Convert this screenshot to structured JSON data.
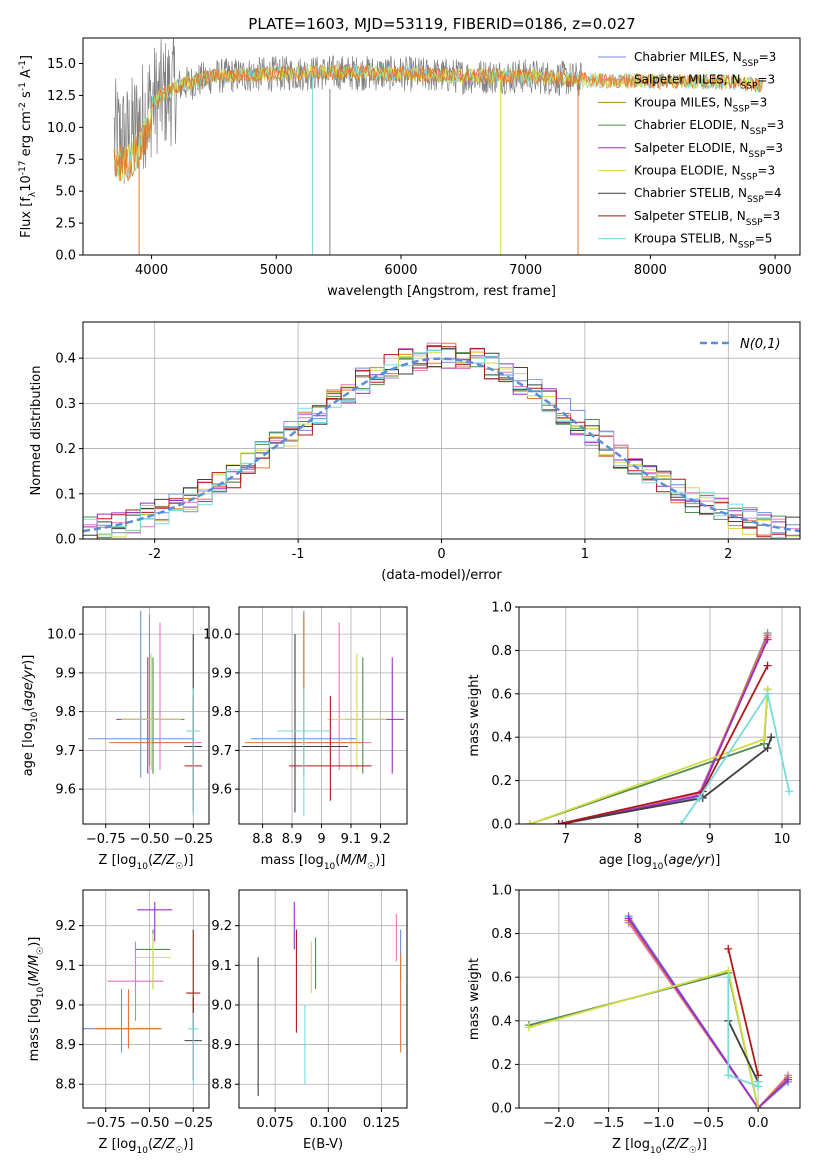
{
  "figure_title": "PLATE=1603, MJD=53119, FIBERID=0186, z=0.027",
  "legend": [
    {
      "name": "Chabrier MILES, N",
      "sub": "SSP",
      "tail": "=3",
      "color": "#6f8fd8"
    },
    {
      "name": "Salpeter MILES, N",
      "sub": "SSP",
      "tail": "=3",
      "color": "#e377c2"
    },
    {
      "name": "Kroupa MILES, N",
      "sub": "SSP",
      "tail": "=3",
      "color": "#b0891e"
    },
    {
      "name": "Chabrier ELODIE, N",
      "sub": "SSP",
      "tail": "=3",
      "color": "#4f8c4f"
    },
    {
      "name": "Salpeter ELODIE, N",
      "sub": "SSP",
      "tail": "=3",
      "color": "#9b30c8"
    },
    {
      "name": "Kroupa ELODIE, N",
      "sub": "SSP",
      "tail": "=3",
      "color": "#d4dc48"
    },
    {
      "name": "Chabrier STELIB, N",
      "sub": "SSP",
      "tail": "=4",
      "color": "#404040"
    },
    {
      "name": "Salpeter STELIB, N",
      "sub": "SSP",
      "tail": "=3",
      "color": "#b01818"
    },
    {
      "name": "Kroupa STELIB, N",
      "sub": "SSP",
      "tail": "=5",
      "color": "#78dcdc"
    }
  ],
  "chart_data": [
    {
      "id": "spectrum",
      "type": "line",
      "xlabel": "wavelength [Angstrom, rest frame]",
      "ylabel_parts": [
        "Flux [f",
        "λ",
        "10",
        "-17",
        " erg cm",
        "-2",
        " s",
        "-1",
        " A",
        "-1",
        "]"
      ],
      "xlim": [
        3450,
        9200
      ],
      "ylim": [
        0,
        17.0
      ],
      "xticks": [
        4000,
        5000,
        6000,
        7000,
        8000,
        9000
      ],
      "yticks": [
        0.0,
        2.5,
        5.0,
        7.5,
        10.0,
        12.5,
        15.0
      ],
      "continuum": [
        [
          3680,
          9.5
        ],
        [
          3800,
          9.0
        ],
        [
          3900,
          10.5
        ],
        [
          4000,
          12.0
        ],
        [
          4200,
          13.2
        ],
        [
          4500,
          14.0
        ],
        [
          5000,
          14.2
        ],
        [
          5500,
          14.3
        ],
        [
          6000,
          14.2
        ],
        [
          6500,
          14.0
        ],
        [
          7000,
          14.0
        ],
        [
          7500,
          13.7
        ],
        [
          8000,
          13.6
        ],
        [
          8500,
          13.6
        ],
        [
          8900,
          13.3
        ]
      ],
      "observed_range": [
        3700,
        7450
      ],
      "model_ranges": [
        [
          3700,
          3900,
          8900
        ],
        [
          3700,
          5290,
          8900
        ],
        [
          3700,
          6800,
          8900
        ],
        [
          3700,
          7420,
          8900
        ]
      ]
    },
    {
      "id": "residuals",
      "type": "step-histogram",
      "xlabel": "(data-model)/error",
      "ylabel": "Normed distribution",
      "xlim": [
        -2.5,
        2.5
      ],
      "ylim": [
        0,
        0.48
      ],
      "xticks": [
        -2,
        -1,
        0,
        1,
        2
      ],
      "yticks": [
        0.0,
        0.1,
        0.2,
        0.3,
        0.4
      ],
      "bin_width": 0.1,
      "reference_label": "N(0,1)",
      "reference_color": "#5b8ed8"
    },
    {
      "id": "age-vs-Z",
      "type": "errorbar",
      "xlabel": "Z [log10(Z/Z☉)]",
      "ylabel": "age [log10(age/yr)]",
      "xlim": [
        -0.88,
        -0.16
      ],
      "ylim": [
        9.51,
        10.07
      ],
      "xticks": [
        -0.75,
        -0.5,
        -0.25
      ],
      "xtick_labels": [
        "−0.75",
        "−0.50",
        "−0.25"
      ],
      "yticks": [
        9.6,
        9.7,
        9.8,
        9.9,
        10.0
      ],
      "points": [
        {
          "x": -0.55,
          "y": 9.73,
          "xerr": 0.3,
          "yerr": [
            0.1,
            0.33
          ],
          "color": "#6f8fd8"
        },
        {
          "x": -0.44,
          "y": 9.72,
          "xerr": 0.24,
          "yerr": [
            0.07,
            0.31
          ],
          "color": "#e377c2"
        },
        {
          "x": -0.5,
          "y": 9.72,
          "xerr": 0.23,
          "yerr": [
            0.06,
            0.33
          ],
          "color": "#e07a30"
        },
        {
          "x": -0.48,
          "y": 9.78,
          "xerr": 0.18,
          "yerr": [
            0.14,
            0.16
          ],
          "color": "#4f8c4f"
        },
        {
          "x": -0.51,
          "y": 9.78,
          "xerr": 0.18,
          "yerr": [
            0.14,
            0.16
          ],
          "color": "#9b30c8"
        },
        {
          "x": -0.49,
          "y": 9.78,
          "xerr": 0.17,
          "yerr": [
            0.13,
            0.17
          ],
          "color": "#d4dc48"
        },
        {
          "x": -0.25,
          "y": 9.71,
          "xerr": 0.05,
          "yerr": [
            0.17,
            0.29
          ],
          "color": "#404040"
        },
        {
          "x": -0.25,
          "y": 9.66,
          "xerr": 0.05,
          "yerr": [
            0.09,
            0.18
          ],
          "color": "#b01818"
        },
        {
          "x": -0.25,
          "y": 9.75,
          "xerr": 0.04,
          "yerr": [
            0.22,
            0.11
          ],
          "color": "#78dcdc"
        }
      ]
    },
    {
      "id": "age-vs-mass",
      "type": "errorbar",
      "xlabel": "mass [log10(M/M☉)]",
      "ylabel": "",
      "xlim": [
        8.72,
        9.29
      ],
      "ylim": [
        9.51,
        10.07
      ],
      "xticks": [
        8.8,
        8.9,
        9.0,
        9.1,
        9.2
      ],
      "yticks": [
        9.6,
        9.7,
        9.8,
        9.9,
        10.0
      ],
      "points": [
        {
          "x": 8.94,
          "y": 9.73,
          "xerr": 0.18,
          "yerr": [
            0.1,
            0.33
          ],
          "color": "#6f8fd8"
        },
        {
          "x": 9.06,
          "y": 9.72,
          "xerr": 0.11,
          "yerr": [
            0.07,
            0.31
          ],
          "color": "#e377c2"
        },
        {
          "x": 8.94,
          "y": 9.72,
          "xerr": 0.2,
          "yerr": [
            0.06,
            0.33
          ],
          "color": "#e07a30"
        },
        {
          "x": 9.14,
          "y": 9.78,
          "xerr": 0.06,
          "yerr": [
            0.14,
            0.16
          ],
          "color": "#4f8c4f"
        },
        {
          "x": 9.24,
          "y": 9.78,
          "xerr": 0.04,
          "yerr": [
            0.14,
            0.16
          ],
          "color": "#9b30c8"
        },
        {
          "x": 9.12,
          "y": 9.78,
          "xerr": 0.1,
          "yerr": [
            0.13,
            0.17
          ],
          "color": "#d4dc48"
        },
        {
          "x": 8.91,
          "y": 9.71,
          "xerr": 0.18,
          "yerr": [
            0.17,
            0.29
          ],
          "color": "#404040"
        },
        {
          "x": 9.03,
          "y": 9.66,
          "xerr": 0.14,
          "yerr": [
            0.09,
            0.18
          ],
          "color": "#b01818"
        },
        {
          "x": 8.94,
          "y": 9.75,
          "xerr": 0.09,
          "yerr": [
            0.22,
            0.11
          ],
          "color": "#78dcdc"
        }
      ]
    },
    {
      "id": "weight-vs-age",
      "type": "line",
      "xlabel": "age [log10(age/yr)]",
      "ylabel": "mass weight",
      "xlim": [
        6.35,
        10.25
      ],
      "ylim": [
        0,
        1.0
      ],
      "xticks": [
        7,
        8,
        9,
        10
      ],
      "yticks": [
        0.0,
        0.2,
        0.4,
        0.6,
        0.8,
        1.0
      ],
      "series": [
        {
          "color": "#6f8fd8",
          "x": [
            6.95,
            8.85,
            9.8
          ],
          "y": [
            0.0,
            0.12,
            0.88
          ]
        },
        {
          "color": "#e377c2",
          "x": [
            6.95,
            8.85,
            9.8
          ],
          "y": [
            0.0,
            0.14,
            0.86
          ]
        },
        {
          "color": "#e07a30",
          "x": [
            6.95,
            8.85,
            9.8
          ],
          "y": [
            0.0,
            0.13,
            0.87
          ]
        },
        {
          "color": "#4f8c4f",
          "x": [
            6.5,
            9.75,
            9.8
          ],
          "y": [
            0.0,
            0.37,
            0.62
          ]
        },
        {
          "color": "#9b30c8",
          "x": [
            6.95,
            8.85,
            9.8
          ],
          "y": [
            0.0,
            0.13,
            0.85
          ]
        },
        {
          "color": "#d4dc48",
          "x": [
            6.5,
            9.75,
            9.8
          ],
          "y": [
            0.0,
            0.39,
            0.62
          ]
        },
        {
          "color": "#404040",
          "x": [
            6.9,
            8.9,
            9.8,
            9.85
          ],
          "y": [
            0.0,
            0.12,
            0.35,
            0.4
          ]
        },
        {
          "color": "#b01818",
          "x": [
            6.9,
            8.9,
            9.8
          ],
          "y": [
            0.0,
            0.15,
            0.73
          ]
        },
        {
          "color": "#78dcdc",
          "x": [
            8.6,
            8.85,
            9.8,
            10.1
          ],
          "y": [
            0.0,
            0.12,
            0.6,
            0.15
          ]
        }
      ]
    },
    {
      "id": "mass-vs-Z",
      "type": "errorbar",
      "xlabel": "Z [log10(Z/Z☉)]",
      "ylabel": "mass [log10(M/M☉)]",
      "xlim": [
        -0.88,
        -0.16
      ],
      "ylim": [
        8.74,
        9.29
      ],
      "xticks": [
        -0.75,
        -0.5,
        -0.25
      ],
      "xtick_labels": [
        "−0.75",
        "−0.50",
        "−0.25"
      ],
      "yticks": [
        8.8,
        8.9,
        9.0,
        9.1,
        9.2
      ],
      "points": [
        {
          "x": -0.66,
          "y": 8.94,
          "xerr": 0.22,
          "yerr": [
            0.06,
            0.1
          ],
          "color": "#6f8fd8"
        },
        {
          "x": -0.58,
          "y": 9.06,
          "xerr": 0.16,
          "yerr": [
            0.1,
            0.1
          ],
          "color": "#e377c2"
        },
        {
          "x": -0.62,
          "y": 8.94,
          "xerr": 0.19,
          "yerr": [
            0.05,
            0.1
          ],
          "color": "#e07a30"
        },
        {
          "x": -0.48,
          "y": 9.14,
          "xerr": 0.1,
          "yerr": [
            0.1,
            0.05
          ],
          "color": "#4f8c4f"
        },
        {
          "x": -0.47,
          "y": 9.24,
          "xerr": 0.1,
          "yerr": [
            0.08,
            0.02
          ],
          "color": "#9b30c8"
        },
        {
          "x": -0.48,
          "y": 9.12,
          "xerr": 0.1,
          "yerr": [
            0.08,
            0.06
          ],
          "color": "#d4dc48"
        },
        {
          "x": -0.25,
          "y": 8.91,
          "xerr": 0.05,
          "yerr": [
            0.1,
            0.11
          ],
          "color": "#404040"
        },
        {
          "x": -0.25,
          "y": 9.03,
          "xerr": 0.04,
          "yerr": [
            0.09,
            0.16
          ],
          "color": "#b01818"
        },
        {
          "x": -0.25,
          "y": 8.94,
          "xerr": 0.03,
          "yerr": [
            0.14,
            0.04
          ],
          "color": "#78dcdc"
        }
      ]
    },
    {
      "id": "mass-vs-EBV",
      "type": "errorbar",
      "xlabel": "E(B-V)",
      "ylabel": "",
      "xlim": [
        0.058,
        0.137
      ],
      "ylim": [
        8.74,
        9.29
      ],
      "xticks": [
        0.075,
        0.1,
        0.125
      ],
      "xtick_labels": [
        "0.075",
        "0.100",
        "0.125"
      ],
      "yticks": [
        8.8,
        8.9,
        9.0,
        9.1,
        9.2
      ],
      "points": [
        {
          "x": 0.134,
          "y": 9.13,
          "xerr": 0,
          "yerr": [
            0.07,
            0.06
          ],
          "color": "#6f8fd8"
        },
        {
          "x": 0.132,
          "y": 9.15,
          "xerr": 0,
          "yerr": [
            0.04,
            0.08
          ],
          "color": "#e377c2"
        },
        {
          "x": 0.134,
          "y": 9.0,
          "xerr": 0,
          "yerr": [
            0.12,
            0.13
          ],
          "color": "#e07a30"
        },
        {
          "x": 0.094,
          "y": 9.1,
          "xerr": 0,
          "yerr": [
            0.06,
            0.07
          ],
          "color": "#4f8c4f"
        },
        {
          "x": 0.084,
          "y": 9.2,
          "xerr": 0,
          "yerr": [
            0.06,
            0.06
          ],
          "color": "#9b30c8"
        },
        {
          "x": 0.092,
          "y": 9.07,
          "xerr": 0,
          "yerr": [
            0.04,
            0.09
          ],
          "color": "#d4dc48"
        },
        {
          "x": 0.067,
          "y": 8.95,
          "xerr": 0,
          "yerr": [
            0.18,
            0.17
          ],
          "color": "#404040"
        },
        {
          "x": 0.085,
          "y": 9.07,
          "xerr": 0,
          "yerr": [
            0.14,
            0.12
          ],
          "color": "#b01818"
        },
        {
          "x": 0.089,
          "y": 8.93,
          "xerr": 0,
          "yerr": [
            0.13,
            0.07
          ],
          "color": "#78dcdc"
        }
      ]
    },
    {
      "id": "weight-vs-Z",
      "type": "line",
      "xlabel": "Z [log10(Z/Z☉)]",
      "ylabel": "mass weight",
      "xlim": [
        -2.4,
        0.42
      ],
      "ylim": [
        0,
        1.0
      ],
      "xticks": [
        -2.0,
        -1.5,
        -1.0,
        -0.5,
        0.0
      ],
      "xtick_labels": [
        "−2.0",
        "−1.5",
        "−1.0",
        "−0.5",
        "0.0"
      ],
      "yticks": [
        0.0,
        0.2,
        0.4,
        0.6,
        0.8,
        1.0
      ],
      "series": [
        {
          "color": "#6f8fd8",
          "x": [
            -1.3,
            0.0,
            0.3
          ],
          "y": [
            0.88,
            0.0,
            0.12
          ]
        },
        {
          "color": "#e377c2",
          "x": [
            -1.3,
            0.0,
            0.3
          ],
          "y": [
            0.85,
            0.0,
            0.15
          ]
        },
        {
          "color": "#e07a30",
          "x": [
            -1.3,
            0.0,
            0.3
          ],
          "y": [
            0.86,
            0.0,
            0.14
          ]
        },
        {
          "color": "#4f8c4f",
          "x": [
            -2.3,
            -0.3,
            0.0
          ],
          "y": [
            0.38,
            0.62,
            0.0
          ]
        },
        {
          "color": "#9b30c8",
          "x": [
            -1.3,
            0.0,
            0.3
          ],
          "y": [
            0.87,
            0.0,
            0.13
          ]
        },
        {
          "color": "#d4dc48",
          "x": [
            -2.3,
            -0.3,
            0.0
          ],
          "y": [
            0.37,
            0.63,
            0.0
          ]
        },
        {
          "color": "#404040",
          "x": [
            -0.3,
            0.0
          ],
          "y": [
            0.4,
            0.12
          ]
        },
        {
          "color": "#b01818",
          "x": [
            -0.3,
            0.0
          ],
          "y": [
            0.73,
            0.15
          ]
        },
        {
          "color": "#78dcdc",
          "x": [
            -0.3,
            -0.3,
            0.0,
            0.0
          ],
          "y": [
            0.6,
            0.15,
            0.1,
            0.12
          ]
        }
      ]
    }
  ]
}
